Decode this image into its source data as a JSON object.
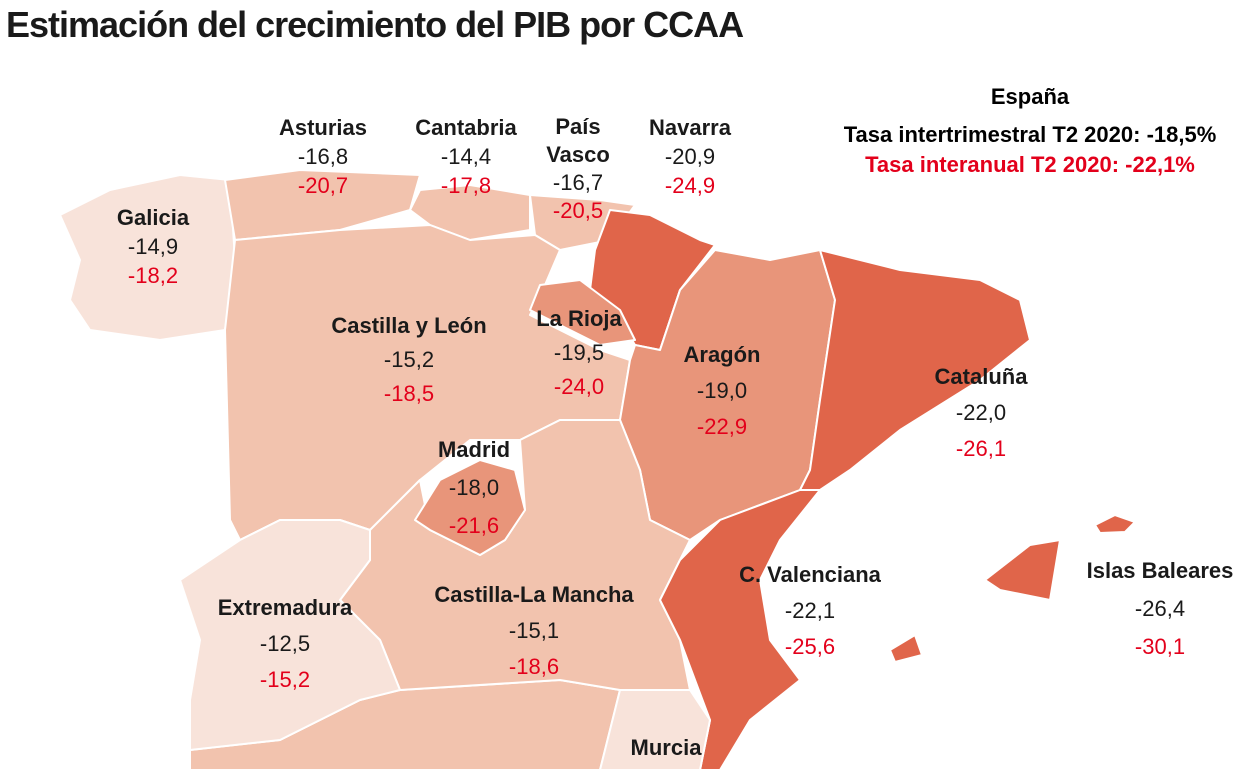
{
  "title": "Estimación  del crecimiento del PIB por CCAA",
  "colors": {
    "light": "#f8e3da",
    "medium_light": "#f2c3ae",
    "medium": "#e8957a",
    "dark": "#e0654a",
    "red_text": "#e3001b"
  },
  "spain": {
    "name": "España",
    "intertrimestral": "Tasa intertrimestral T2 2020: -18,5%",
    "interanual": "Tasa interanual T2 2020: -22,1%"
  },
  "regions": [
    {
      "name": "Galicia",
      "q": "-14,9",
      "y": "-18,2"
    },
    {
      "name": "Asturias",
      "q": "-16,8",
      "y": "-20,7"
    },
    {
      "name": "Cantabria",
      "q": "-14,4",
      "y": "-17,8"
    },
    {
      "name": "País Vasco",
      "q": "-16,7",
      "y": "-20,5"
    },
    {
      "name": "Navarra",
      "q": "-20,9",
      "y": "-24,9"
    },
    {
      "name": "Castilla y León",
      "q": "-15,2",
      "y": "-18,5"
    },
    {
      "name": "La Rioja",
      "q": "-19,5",
      "y": "-24,0"
    },
    {
      "name": "Aragón",
      "q": "-19,0",
      "y": "-22,9"
    },
    {
      "name": "Cataluña",
      "q": "-22,0",
      "y": "-26,1"
    },
    {
      "name": "Madrid",
      "q": "-18,0",
      "y": "-21,6"
    },
    {
      "name": "C. Valenciana",
      "q": "-22,1",
      "y": "-25,6"
    },
    {
      "name": "Islas Baleares",
      "q": "-26,4",
      "y": "-30,1"
    },
    {
      "name": "Extremadura",
      "q": "-12,5",
      "y": "-15,2"
    },
    {
      "name": "Castilla-La Mancha",
      "q": "-15,1",
      "y": "-18,6"
    },
    {
      "name": "Murcia"
    }
  ]
}
